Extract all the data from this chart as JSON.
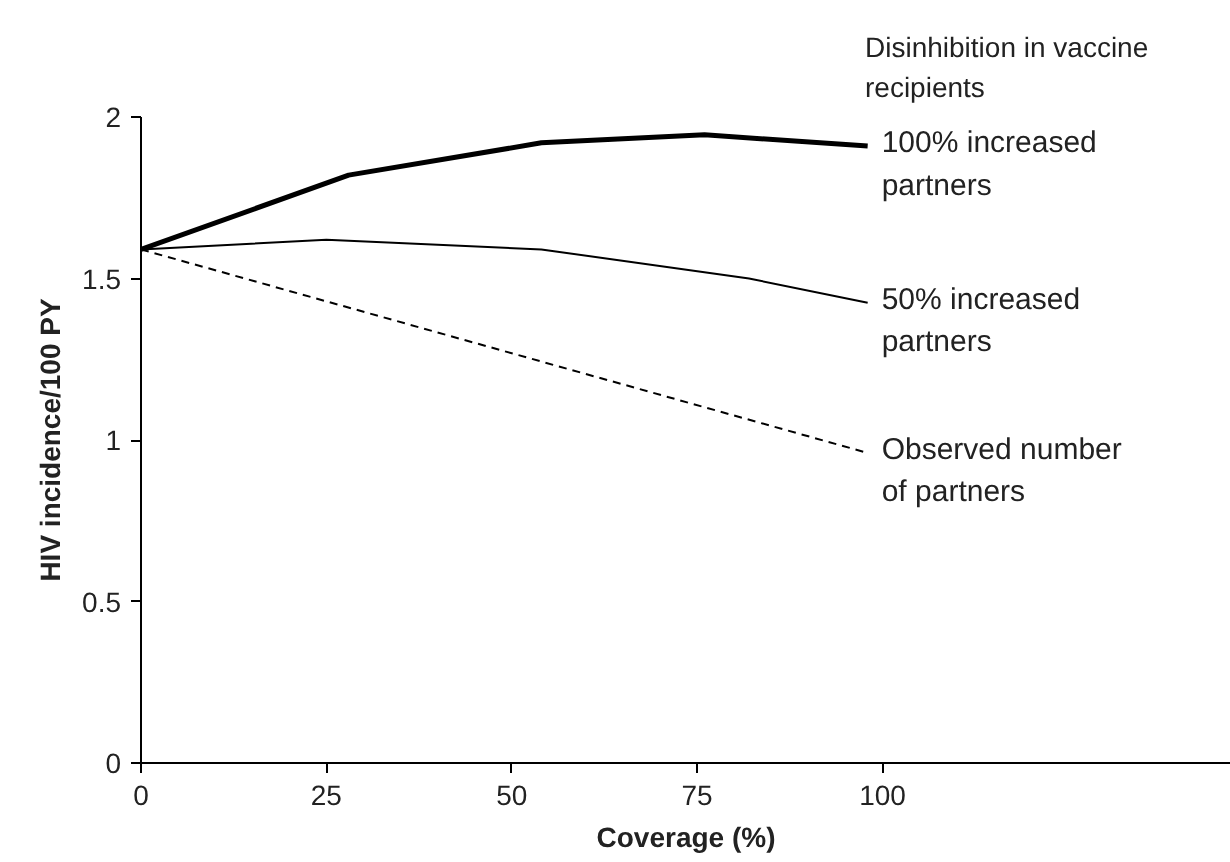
{
  "chart_data": {
    "type": "line",
    "xlabel": "Coverage (%)",
    "ylabel": "HIV incidence/100 PY",
    "xlim": [
      0,
      147
    ],
    "xticks": [
      0,
      25,
      50,
      75,
      100
    ],
    "ylim": [
      0,
      2
    ],
    "yticks": [
      0,
      0.5,
      1,
      1.5,
      2
    ],
    "grid": false,
    "marker": "none",
    "annotations": [
      "Disinhibition in vaccine recipients"
    ],
    "series": [
      {
        "name": "100% increased partners",
        "color": "#000000",
        "line_style": "solid",
        "x": [
          0,
          28,
          54,
          76,
          98
        ],
        "values": [
          1.59,
          1.82,
          1.92,
          1.945,
          1.91
        ]
      },
      {
        "name": "50% increased partners",
        "color": "#000000",
        "line_style": "solid",
        "x": [
          0,
          25,
          54,
          82,
          98
        ],
        "values": [
          1.59,
          1.62,
          1.59,
          1.5,
          1.425
        ]
      },
      {
        "name": "Observed number of partners",
        "color": "#000000",
        "line_style": "dashed",
        "x": [
          0,
          98
        ],
        "values": [
          1.59,
          0.96
        ]
      }
    ]
  }
}
